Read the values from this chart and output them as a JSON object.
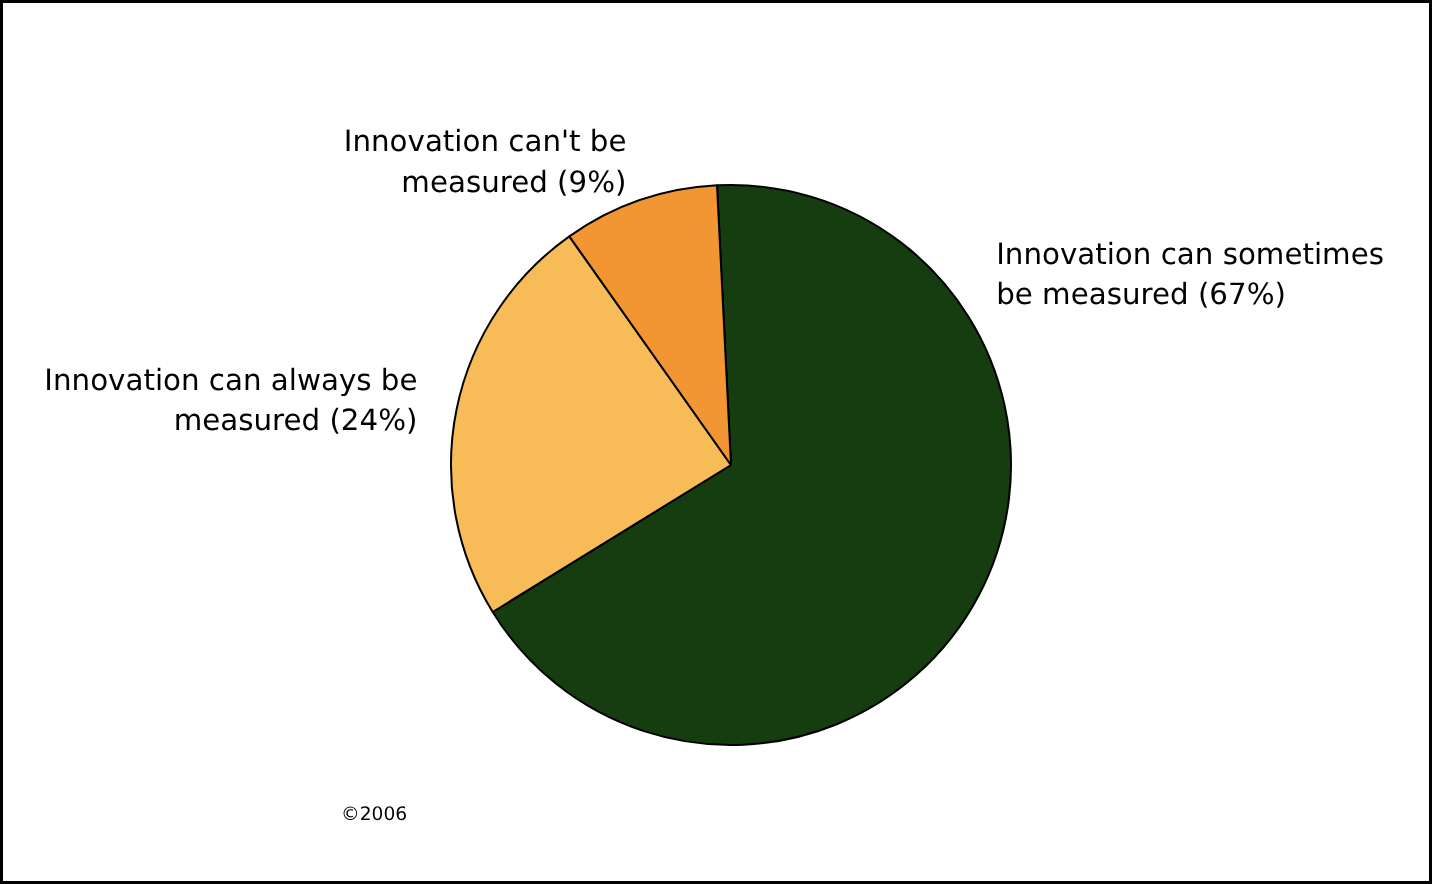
{
  "chart_data": {
    "type": "pie",
    "categories": [
      "Innovation can sometimes be measured (67%)",
      "Innovation can always be measured (24%)",
      "Innovation can't be measured (9%)"
    ],
    "values": [
      67,
      24,
      9
    ],
    "colors": [
      "#153d10",
      "#f7bc58",
      "#f29633"
    ],
    "annotations": [
      "©2006"
    ]
  }
}
